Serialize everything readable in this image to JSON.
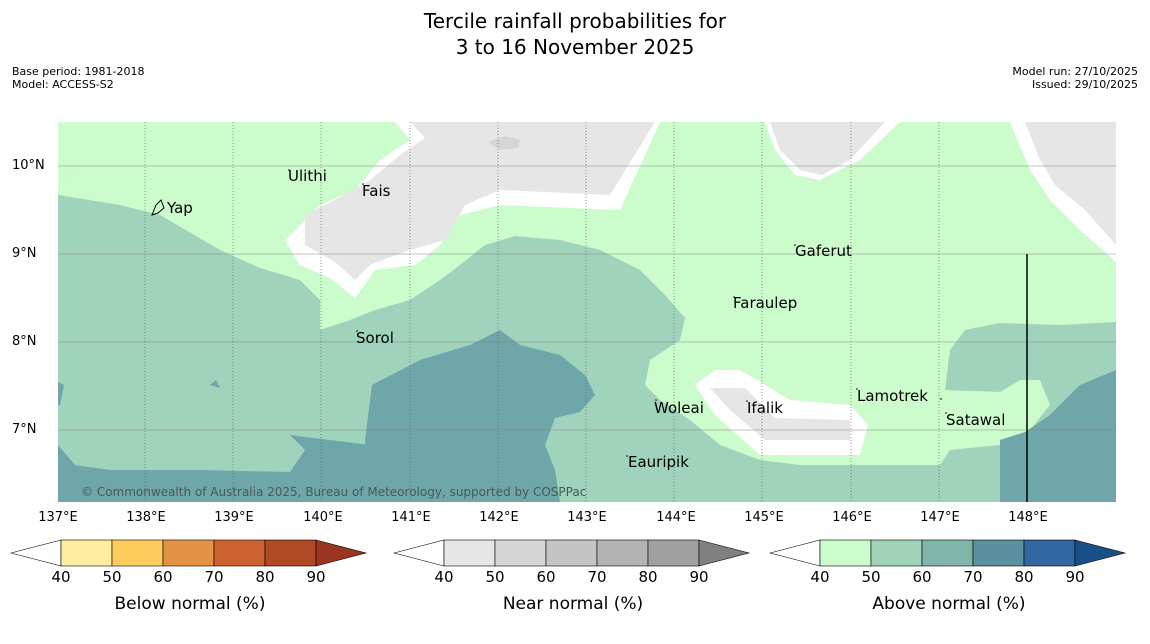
{
  "title": {
    "line1": "Tercile rainfall probabilities for",
    "line2": "3 to 16 November 2025"
  },
  "meta_left": {
    "base_period": "Base period: 1981-2018",
    "model": "Model: ACCESS-S2"
  },
  "meta_right": {
    "model_run": "Model run: 27/10/2025",
    "issued": "Issued: 29/10/2025"
  },
  "map": {
    "lat_labels": [
      "10°N",
      "9°N",
      "8°N",
      "7°N"
    ],
    "lon_labels": [
      "137°E",
      "138°E",
      "139°E",
      "140°E",
      "141°E",
      "142°E",
      "143°E",
      "144°E",
      "145°E",
      "146°E",
      "147°E",
      "148°E"
    ],
    "places": [
      "Yap",
      "Ulithi",
      "Fais",
      "Gaferut",
      "Faraulep",
      "Sorol",
      "Woleai",
      "Ifalik",
      "Lamotrek",
      "Satawal",
      "Eauripik"
    ],
    "credit": "© Commonwealth of Australia 2025, Bureau of Meteorology, supported by COSPPac",
    "colors": {
      "above_40_50": "#ccfccc",
      "above_50_60": "#9fd3bb",
      "above_60_70": "#6fa6a9",
      "near_40_50": "#e6e6e6",
      "unshaded": "#ffffff"
    }
  },
  "colorbars": [
    {
      "label": "Below normal (%)",
      "ticks": [
        "40",
        "50",
        "60",
        "70",
        "80",
        "90"
      ],
      "colors": [
        "#ffffff",
        "#ffeda0",
        "#fecc5c",
        "#e29444",
        "#cd6230",
        "#b04a24",
        "#9a3423"
      ]
    },
    {
      "label": "Near normal (%)",
      "ticks": [
        "40",
        "50",
        "60",
        "70",
        "80",
        "90"
      ],
      "colors": [
        "#ffffff",
        "#e6e6e6",
        "#d6d6d6",
        "#c4c4c4",
        "#b3b3b3",
        "#a0a0a0",
        "#808080"
      ]
    },
    {
      "label": "Above normal (%)",
      "ticks": [
        "40",
        "50",
        "60",
        "70",
        "80",
        "90"
      ],
      "colors": [
        "#ffffff",
        "#ccfccc",
        "#a0d3b8",
        "#80b5aa",
        "#5a90a0",
        "#3266a0",
        "#174f88"
      ]
    }
  ]
}
